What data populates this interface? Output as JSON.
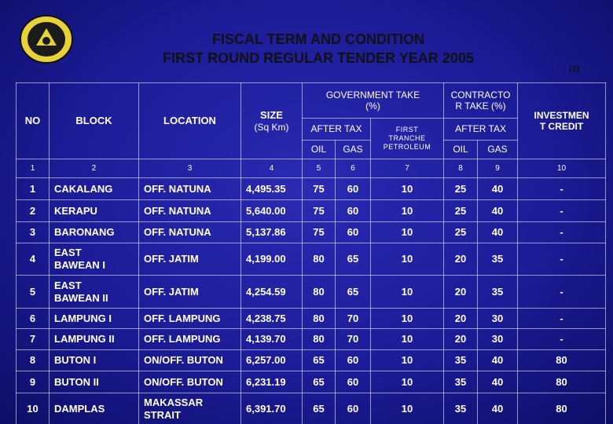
{
  "header": {
    "title_line1": "FISCAL TERM AND CONDITION",
    "title_line2": "FIRST ROUND REGULAR  TENDER YEAR 2005",
    "page_number": "(1)"
  },
  "table": {
    "headers": {
      "no": "NO",
      "block": "BLOCK",
      "location": "LOCATION",
      "size": "SIZE",
      "size_unit": "(Sq Km)",
      "government_take": "GOVERNMENT TAKE\n(%)",
      "gov_after_tax": "AFTER TAX",
      "first_tranche_petroleum": "FIRST\nTRANCHE\nPETROLEUM",
      "contractor_take": "CONTRACTO\nR TAKE (%)",
      "con_after_tax": "AFTER TAX",
      "investment_credit": "INVESTMEN\nT CREDIT",
      "gov_oil": "OIL",
      "gov_gas": "GAS",
      "con_oil": "OIL",
      "con_gas": "GAS"
    },
    "column_numbers": [
      "1",
      "2",
      "3",
      "4",
      "5",
      "6",
      "7",
      "8",
      "9",
      "10"
    ],
    "rows": [
      [
        "1",
        "CAKALANG",
        "OFF. NATUNA",
        "4,495.35",
        "75",
        "60",
        "10",
        "25",
        "40",
        "-"
      ],
      [
        "2",
        "KERAPU",
        "OFF. NATUNA",
        "5,640.00",
        "75",
        "60",
        "10",
        "25",
        "40",
        "-"
      ],
      [
        "3",
        "BARONANG",
        "OFF. NATUNA",
        "5,137.86",
        "75",
        "60",
        "10",
        "25",
        "40",
        "-"
      ],
      [
        "4",
        "EAST\nBAWEAN I",
        "OFF. JATIM",
        "4,199.00",
        "80",
        "65",
        "10",
        "20",
        "35",
        "-"
      ],
      [
        "5",
        "EAST\nBAWEAN II",
        "OFF. JATIM",
        "4,254.59",
        "80",
        "65",
        "10",
        "20",
        "35",
        "-"
      ],
      [
        "6",
        "LAMPUNG I",
        "OFF. LAMPUNG",
        "4,238.75",
        "80",
        "70",
        "10",
        "20",
        "30",
        "-"
      ],
      [
        "7",
        "LAMPUNG II",
        "OFF. LAMPUNG",
        "4,139.70",
        "80",
        "70",
        "10",
        "20",
        "30",
        "-"
      ],
      [
        "8",
        "BUTON I",
        "ON/OFF. BUTON",
        "6,257.00",
        "65",
        "60",
        "10",
        "35",
        "40",
        "80"
      ],
      [
        "9",
        "BUTON II",
        "ON/OFF. BUTON",
        "6,231.19",
        "65",
        "60",
        "10",
        "35",
        "40",
        "80"
      ],
      [
        "10",
        "DAMPLAS",
        "MAKASSAR\nSTRAIT",
        "6,391.70",
        "65",
        "60",
        "10",
        "35",
        "40",
        "80"
      ]
    ]
  }
}
